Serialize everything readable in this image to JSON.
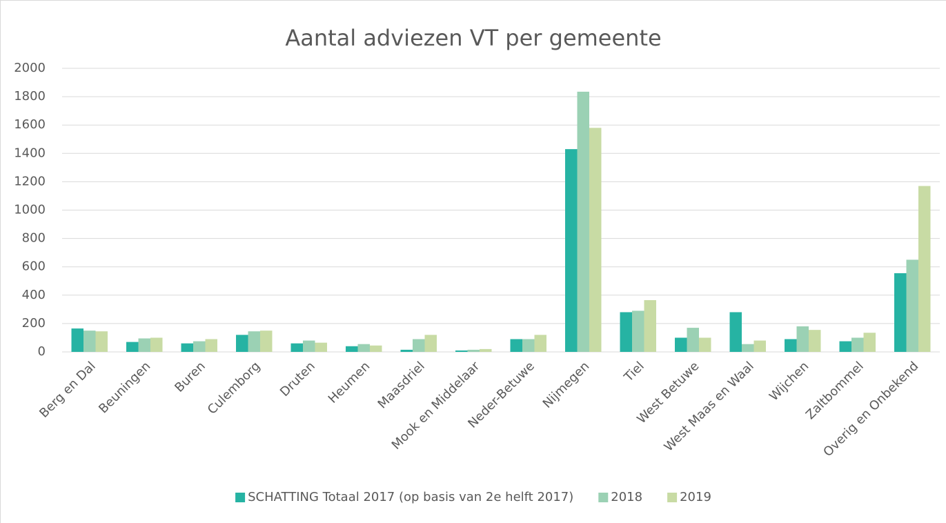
{
  "chart_data": {
    "type": "bar",
    "title": "Aantal adviezen VT per gemeente",
    "categories": [
      "Berg en Dal",
      "Beuningen",
      "Buren",
      "Culemborg",
      "Druten",
      "Heumen",
      "Maasdriel",
      "Mook en Middelaar",
      "Neder-Betuwe",
      "Nijmegen",
      "Tiel",
      "West Betuwe",
      "West Maas en Waal",
      "Wijchen",
      "Zaltbommel",
      "Overig en Onbekend"
    ],
    "series": [
      {
        "name": "SCHATTING Totaal 2017 (op basis van 2e helft 2017)",
        "color": "#26b3a3",
        "values": [
          165,
          70,
          60,
          120,
          60,
          40,
          15,
          10,
          90,
          1430,
          280,
          100,
          280,
          90,
          75,
          555
        ]
      },
      {
        "name": "2018",
        "color": "#9bd1b4",
        "values": [
          150,
          95,
          75,
          145,
          80,
          55,
          90,
          15,
          90,
          1835,
          290,
          170,
          55,
          180,
          100,
          650
        ]
      },
      {
        "name": "2019",
        "color": "#c8dba4",
        "values": [
          145,
          100,
          90,
          150,
          65,
          45,
          120,
          20,
          120,
          1580,
          365,
          100,
          80,
          155,
          135,
          1170
        ]
      }
    ],
    "ylim": [
      0,
      2000
    ],
    "yticks": [
      0,
      200,
      400,
      600,
      800,
      1000,
      1200,
      1400,
      1600,
      1800,
      2000
    ],
    "grid": true,
    "legend": "bottom"
  }
}
